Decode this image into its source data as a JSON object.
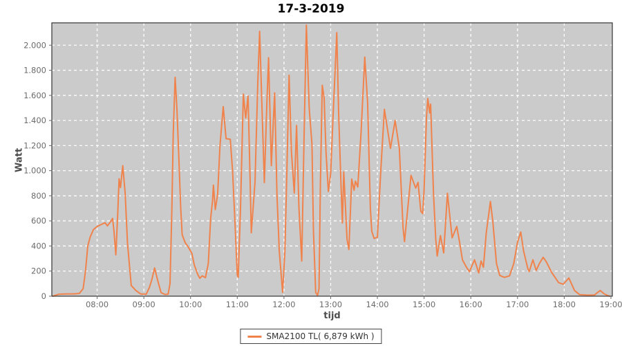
{
  "chart_data": {
    "type": "line",
    "title": "17-3-2019",
    "xlabel": "tijd",
    "ylabel": "Watt",
    "grid": true,
    "legend_position": "bottom-center",
    "x_range_hours": [
      7.03,
      19.03
    ],
    "y_range": [
      0,
      2178
    ],
    "x_ticks": [
      {
        "hour": 8,
        "label": "08:00"
      },
      {
        "hour": 9,
        "label": "09:00"
      },
      {
        "hour": 10,
        "label": "10:00"
      },
      {
        "hour": 11,
        "label": "11:00"
      },
      {
        "hour": 12,
        "label": "12:00"
      },
      {
        "hour": 13,
        "label": "13:00"
      },
      {
        "hour": 14,
        "label": "14:00"
      },
      {
        "hour": 15,
        "label": "15:00"
      },
      {
        "hour": 16,
        "label": "16:00"
      },
      {
        "hour": 17,
        "label": "17:00"
      },
      {
        "hour": 18,
        "label": "18:00"
      },
      {
        "hour": 19,
        "label": "19:00"
      }
    ],
    "y_ticks": [
      {
        "value": 0,
        "label": "0"
      },
      {
        "value": 200,
        "label": "200"
      },
      {
        "value": 400,
        "label": "400"
      },
      {
        "value": 600,
        "label": "600"
      },
      {
        "value": 800,
        "label": "800"
      },
      {
        "value": 1000,
        "label": "1.000"
      },
      {
        "value": 1200,
        "label": "1.200"
      },
      {
        "value": 1400,
        "label": "1.400"
      },
      {
        "value": 1600,
        "label": "1.600"
      },
      {
        "value": 1800,
        "label": "1.800"
      },
      {
        "value": 2000,
        "label": "2.000"
      }
    ],
    "colors": {
      "plot_background": "#cbcbcb",
      "gridline": "#ffffff",
      "plot_border": "#333333",
      "tick_label": "#6b6b6b",
      "series_orange": "#f0824b"
    },
    "series": [
      {
        "name": "SMA2100 TL( 6,879 kWh )",
        "color": "#f0824b",
        "points_format": "[decimal_hour, watt]",
        "points": [
          [
            7.05,
            0
          ],
          [
            7.17,
            15
          ],
          [
            7.33,
            18
          ],
          [
            7.5,
            18
          ],
          [
            7.62,
            22
          ],
          [
            7.7,
            60
          ],
          [
            7.75,
            200
          ],
          [
            7.8,
            400
          ],
          [
            7.85,
            470
          ],
          [
            7.92,
            530
          ],
          [
            8.0,
            555
          ],
          [
            8.08,
            570
          ],
          [
            8.17,
            585
          ],
          [
            8.22,
            560
          ],
          [
            8.3,
            600
          ],
          [
            8.33,
            620
          ],
          [
            8.36,
            520
          ],
          [
            8.4,
            330
          ],
          [
            8.44,
            650
          ],
          [
            8.47,
            935
          ],
          [
            8.5,
            865
          ],
          [
            8.55,
            1040
          ],
          [
            8.6,
            820
          ],
          [
            8.65,
            420
          ],
          [
            8.73,
            85
          ],
          [
            8.83,
            45
          ],
          [
            8.93,
            18
          ],
          [
            9.05,
            15
          ],
          [
            9.12,
            70
          ],
          [
            9.17,
            130
          ],
          [
            9.23,
            225
          ],
          [
            9.3,
            120
          ],
          [
            9.37,
            28
          ],
          [
            9.45,
            14
          ],
          [
            9.52,
            16
          ],
          [
            9.56,
            100
          ],
          [
            9.6,
            700
          ],
          [
            9.63,
            1300
          ],
          [
            9.67,
            1744
          ],
          [
            9.71,
            1480
          ],
          [
            9.75,
            1100
          ],
          [
            9.79,
            700
          ],
          [
            9.82,
            490
          ],
          [
            9.88,
            430
          ],
          [
            9.95,
            392
          ],
          [
            10.03,
            340
          ],
          [
            10.08,
            250
          ],
          [
            10.15,
            176
          ],
          [
            10.2,
            143
          ],
          [
            10.25,
            162
          ],
          [
            10.32,
            148
          ],
          [
            10.38,
            260
          ],
          [
            10.43,
            620
          ],
          [
            10.47,
            760
          ],
          [
            10.49,
            885
          ],
          [
            10.53,
            690
          ],
          [
            10.58,
            810
          ],
          [
            10.63,
            1200
          ],
          [
            10.7,
            1510
          ],
          [
            10.76,
            1255
          ],
          [
            10.85,
            1250
          ],
          [
            10.9,
            1000
          ],
          [
            10.95,
            600
          ],
          [
            11.0,
            170
          ],
          [
            11.02,
            150
          ],
          [
            11.07,
            700
          ],
          [
            11.13,
            1610
          ],
          [
            11.18,
            1420
          ],
          [
            11.23,
            1595
          ],
          [
            11.27,
            1000
          ],
          [
            11.3,
            505
          ],
          [
            11.38,
            910
          ],
          [
            11.44,
            1700
          ],
          [
            11.48,
            2110
          ],
          [
            11.53,
            1500
          ],
          [
            11.58,
            905
          ],
          [
            11.63,
            1500
          ],
          [
            11.67,
            1900
          ],
          [
            11.73,
            1040
          ],
          [
            11.8,
            1620
          ],
          [
            11.85,
            800
          ],
          [
            11.9,
            360
          ],
          [
            11.97,
            30
          ],
          [
            12.02,
            350
          ],
          [
            12.06,
            950
          ],
          [
            12.11,
            1760
          ],
          [
            12.16,
            1150
          ],
          [
            12.22,
            822
          ],
          [
            12.27,
            1360
          ],
          [
            12.32,
            710
          ],
          [
            12.38,
            280
          ],
          [
            12.43,
            1250
          ],
          [
            12.48,
            2160
          ],
          [
            12.54,
            1500
          ],
          [
            12.6,
            1210
          ],
          [
            12.63,
            530
          ],
          [
            12.68,
            30
          ],
          [
            12.72,
            6
          ],
          [
            12.75,
            60
          ],
          [
            12.78,
            900
          ],
          [
            12.82,
            1680
          ],
          [
            12.86,
            1580
          ],
          [
            12.9,
            1150
          ],
          [
            12.95,
            835
          ],
          [
            13.0,
            980
          ],
          [
            13.05,
            1430
          ],
          [
            13.13,
            2100
          ],
          [
            13.17,
            1456
          ],
          [
            13.22,
            907
          ],
          [
            13.25,
            583
          ],
          [
            13.28,
            990
          ],
          [
            13.35,
            455
          ],
          [
            13.39,
            372
          ],
          [
            13.45,
            933
          ],
          [
            13.5,
            844
          ],
          [
            13.53,
            917
          ],
          [
            13.58,
            870
          ],
          [
            13.65,
            1300
          ],
          [
            13.73,
            1905
          ],
          [
            13.79,
            1544
          ],
          [
            13.85,
            700
          ],
          [
            13.88,
            517
          ],
          [
            13.93,
            460
          ],
          [
            14.0,
            470
          ],
          [
            14.07,
            983
          ],
          [
            14.15,
            1489
          ],
          [
            14.28,
            1178
          ],
          [
            14.38,
            1400
          ],
          [
            14.47,
            1180
          ],
          [
            14.55,
            545
          ],
          [
            14.58,
            435
          ],
          [
            14.65,
            700
          ],
          [
            14.72,
            963
          ],
          [
            14.82,
            861
          ],
          [
            14.87,
            907
          ],
          [
            14.93,
            677
          ],
          [
            14.97,
            658
          ],
          [
            15.0,
            843
          ],
          [
            15.05,
            1417
          ],
          [
            15.08,
            1575
          ],
          [
            15.12,
            1460
          ],
          [
            15.14,
            1530
          ],
          [
            15.2,
            825
          ],
          [
            15.25,
            455
          ],
          [
            15.28,
            320
          ],
          [
            15.35,
            483
          ],
          [
            15.42,
            345
          ],
          [
            15.5,
            820
          ],
          [
            15.6,
            465
          ],
          [
            15.7,
            555
          ],
          [
            15.76,
            430
          ],
          [
            15.82,
            290
          ],
          [
            15.9,
            235
          ],
          [
            15.97,
            195
          ],
          [
            16.08,
            290
          ],
          [
            16.17,
            185
          ],
          [
            16.22,
            280
          ],
          [
            16.27,
            230
          ],
          [
            16.33,
            500
          ],
          [
            16.42,
            755
          ],
          [
            16.47,
            600
          ],
          [
            16.55,
            260
          ],
          [
            16.62,
            165
          ],
          [
            16.72,
            150
          ],
          [
            16.83,
            162
          ],
          [
            16.92,
            260
          ],
          [
            17.0,
            430
          ],
          [
            17.07,
            511
          ],
          [
            17.13,
            360
          ],
          [
            17.22,
            220
          ],
          [
            17.25,
            196
          ],
          [
            17.33,
            290
          ],
          [
            17.4,
            205
          ],
          [
            17.47,
            262
          ],
          [
            17.55,
            310
          ],
          [
            17.62,
            272
          ],
          [
            17.73,
            190
          ],
          [
            17.88,
            108
          ],
          [
            17.98,
            95
          ],
          [
            18.1,
            145
          ],
          [
            18.22,
            45
          ],
          [
            18.33,
            12
          ],
          [
            18.5,
            8
          ],
          [
            18.65,
            10
          ],
          [
            18.77,
            45
          ],
          [
            18.85,
            20
          ],
          [
            18.93,
            5
          ],
          [
            18.97,
            0
          ]
        ]
      }
    ],
    "legend": {
      "entries": [
        {
          "label": "SMA2100 TL( 6,879 kWh )",
          "color": "#f0824b"
        }
      ]
    }
  }
}
